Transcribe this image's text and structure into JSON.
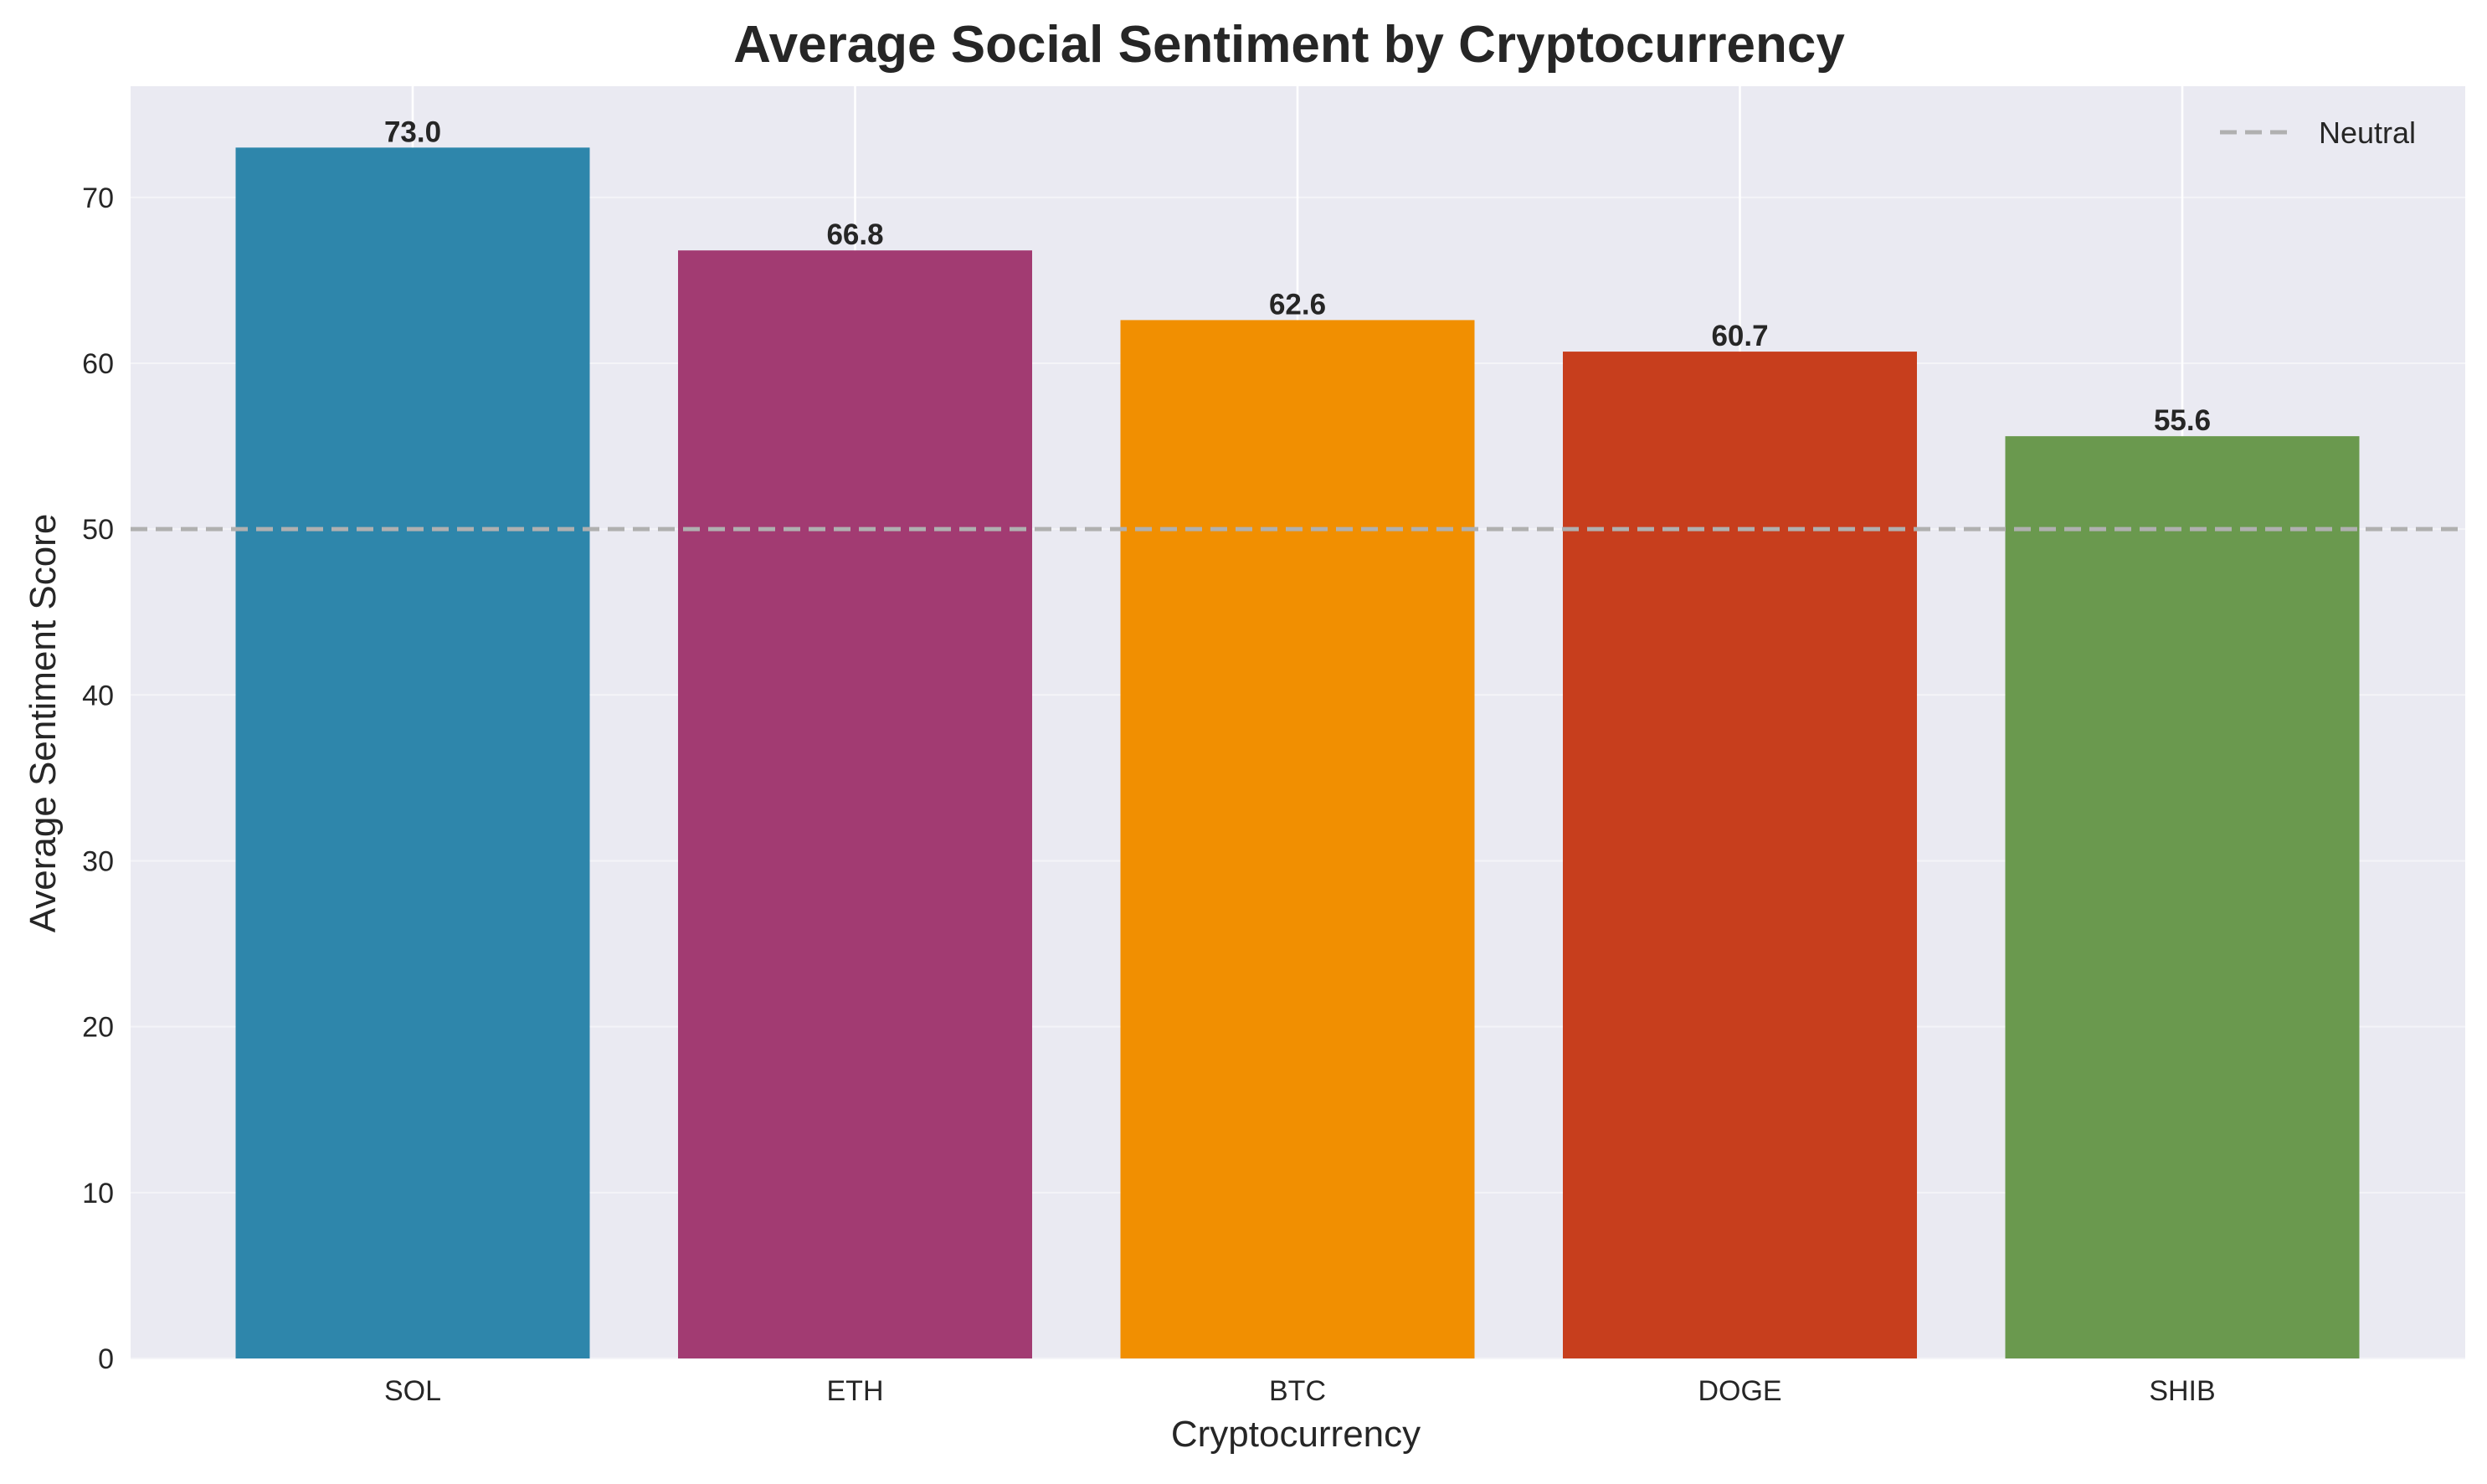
{
  "chart_data": {
    "type": "bar",
    "title": "Average Social Sentiment by Cryptocurrency",
    "xlabel": "Cryptocurrency",
    "ylabel": "Average Sentiment Score",
    "categories": [
      "SOL",
      "ETH",
      "BTC",
      "DOGE",
      "SHIB"
    ],
    "values": [
      73.0,
      66.8,
      62.6,
      60.7,
      55.6
    ],
    "value_labels": [
      "73.0",
      "66.8",
      "62.6",
      "60.7",
      "55.6"
    ],
    "colors": [
      "#2E86AB",
      "#A23B72",
      "#F18F01",
      "#C73E1D",
      "#6A994E"
    ],
    "ylim": [
      0,
      76.7
    ],
    "yticks": [
      0,
      10,
      20,
      30,
      40,
      50,
      60,
      70
    ],
    "ytick_labels": [
      "0",
      "10",
      "20",
      "30",
      "40",
      "50",
      "60",
      "70"
    ],
    "reference_line": {
      "value": 50,
      "label": "Neutral",
      "color": "#B0B0B0",
      "style": "dashed"
    },
    "legend": {
      "entries": [
        "Neutral"
      ],
      "placement": "top-right"
    },
    "grid": true,
    "background": "#EAEAF2"
  }
}
